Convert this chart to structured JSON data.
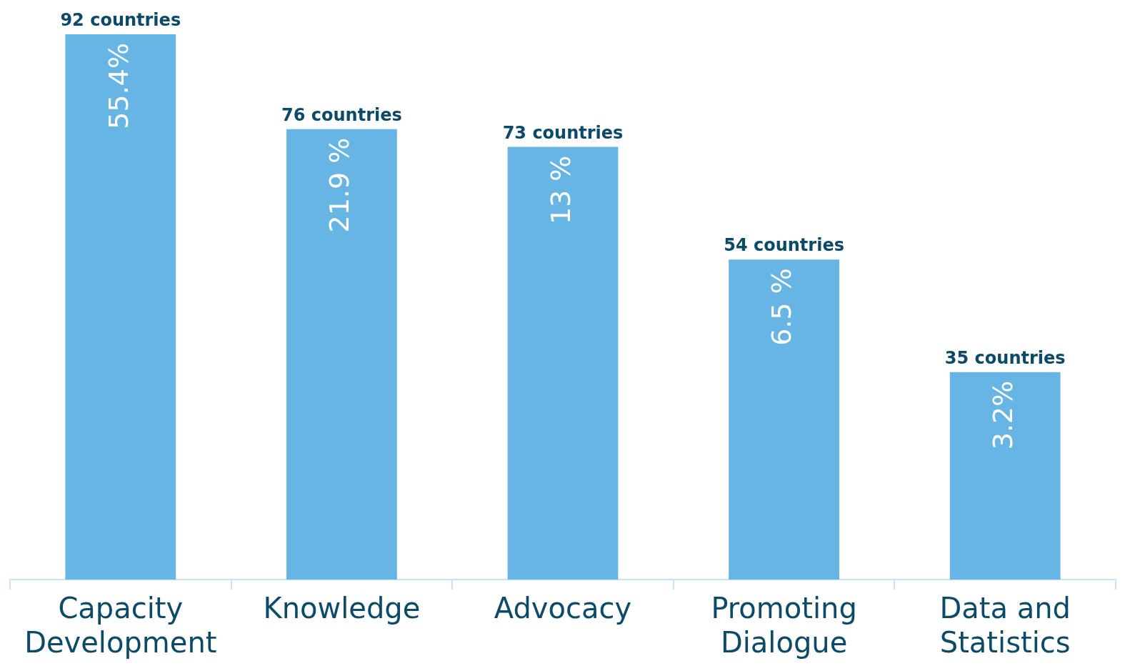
{
  "chart_data": {
    "type": "bar",
    "categories": [
      "Capacity Development",
      "Knowledge",
      "Advocacy",
      "Promoting Dialogue",
      "Data and Statistics"
    ],
    "values": [
      92,
      76,
      73,
      54,
      35
    ],
    "value_labels": [
      "92 countries",
      "76 countries",
      "73 countries",
      "54 countries",
      "35 countries"
    ],
    "color": "#67b5e5",
    "annotations": [
      "55.4%",
      "21.9 %",
      "13 %",
      "6.5 %",
      "3.2%"
    ],
    "grid": false,
    "legend": false,
    "tick_labels": "x"
  }
}
